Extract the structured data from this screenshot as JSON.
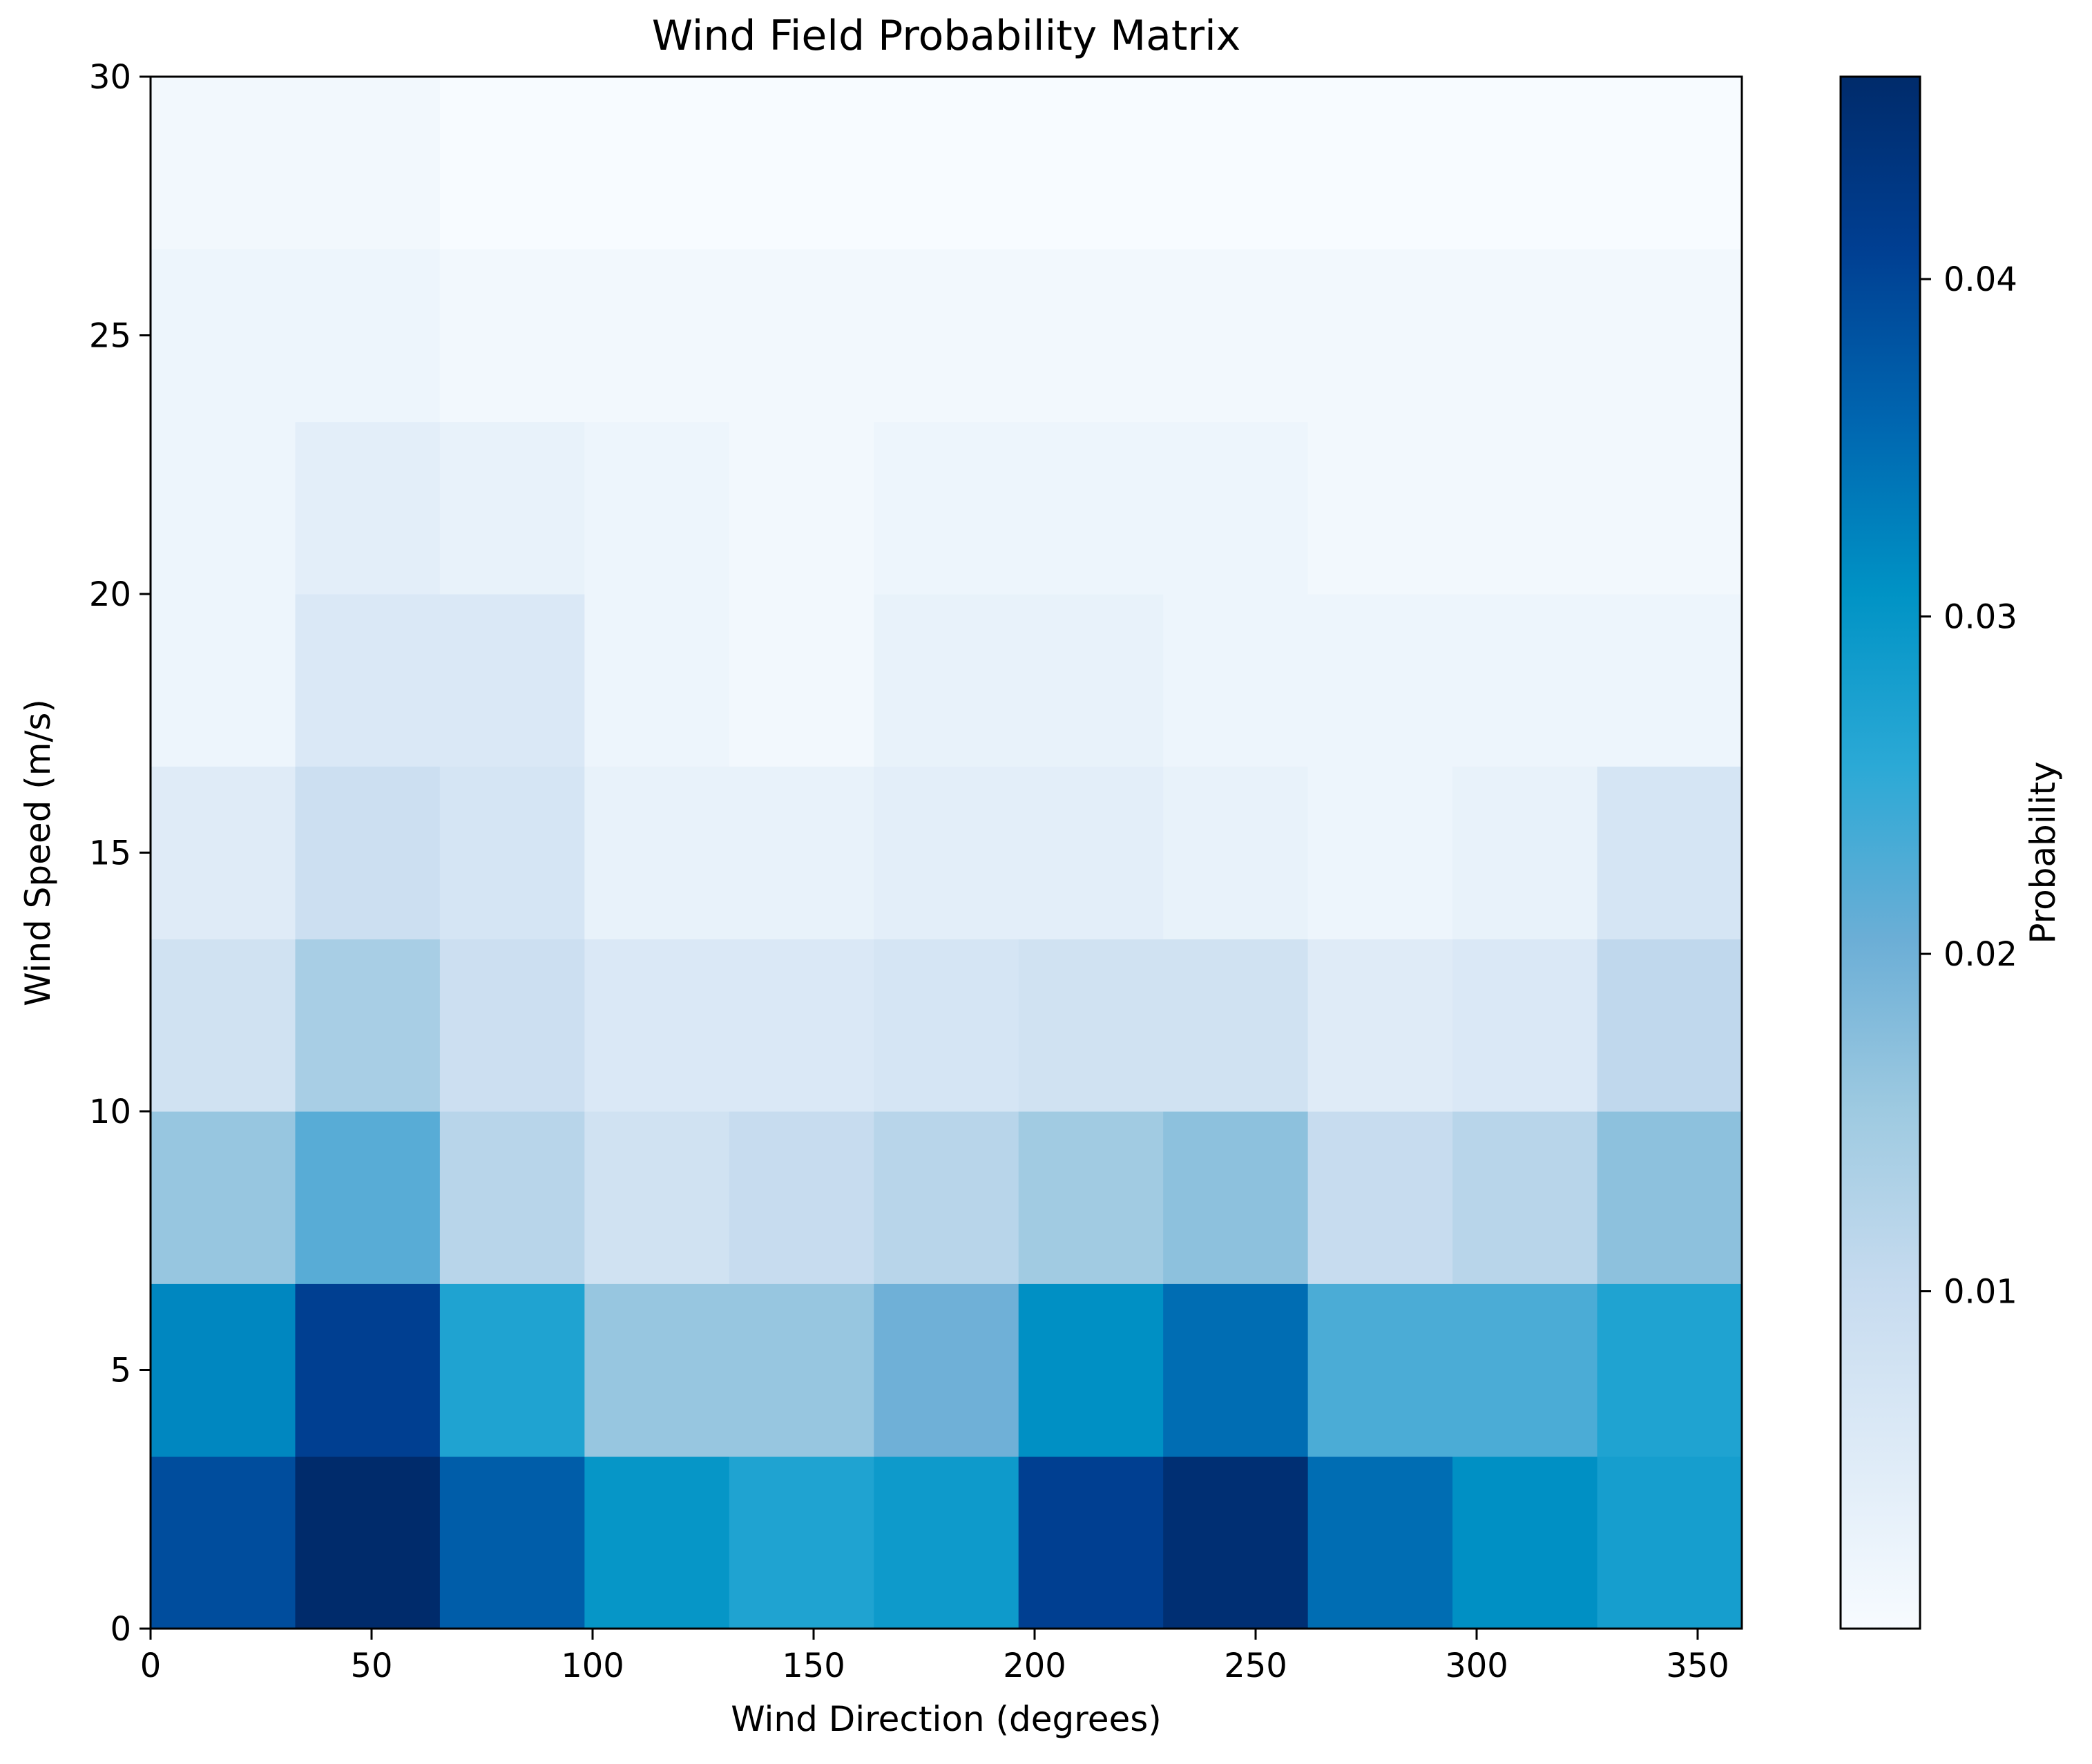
{
  "chart_data": {
    "type": "heatmap",
    "title": "Wind Field Probability Matrix",
    "xlabel": "Wind Direction (degrees)",
    "ylabel": "Wind Speed (m/s)",
    "colorbar_label": "Probability",
    "colormap": "Blues",
    "colormap_stops": [
      "#f7fbff",
      "#deebf7",
      "#c6dbef",
      "#9ecae1",
      "#6baed6",
      "#2ba9d6",
      "#0093c5",
      "#0066b0",
      "#003f92",
      "#002b6b"
    ],
    "xlim": [
      0,
      360
    ],
    "ylim": [
      0,
      30
    ],
    "clim": [
      0.0,
      0.046
    ],
    "x_ticks": [
      0,
      50,
      100,
      150,
      200,
      250,
      300,
      350
    ],
    "y_ticks": [
      0,
      5,
      10,
      15,
      20,
      25,
      30
    ],
    "colorbar_ticks": [
      0.01,
      0.02,
      0.03,
      0.04
    ],
    "x_tick_labels": [
      "0",
      "50",
      "100",
      "150",
      "200",
      "250",
      "300",
      "350"
    ],
    "y_tick_labels": [
      "0",
      "5",
      "10",
      "15",
      "20",
      "25",
      "30"
    ],
    "colorbar_tick_labels": [
      "0.01",
      "0.02",
      "0.03",
      "0.04"
    ],
    "x_edges": [
      0,
      32.73,
      65.45,
      98.18,
      130.91,
      163.64,
      196.36,
      229.09,
      261.82,
      294.55,
      327.27,
      360
    ],
    "y_edges": [
      0,
      3.33,
      6.67,
      10,
      13.33,
      16.67,
      20,
      23.33,
      26.67,
      30
    ],
    "values": [
      [
        0.039,
        0.046,
        0.037,
        0.03,
        0.027,
        0.029,
        0.041,
        0.045,
        0.035,
        0.031,
        0.028
      ],
      [
        0.032,
        0.041,
        0.027,
        0.016,
        0.016,
        0.02,
        0.031,
        0.035,
        0.023,
        0.023,
        0.027
      ],
      [
        0.016,
        0.022,
        0.012,
        0.008,
        0.01,
        0.012,
        0.015,
        0.017,
        0.01,
        0.012,
        0.017
      ],
      [
        0.008,
        0.014,
        0.009,
        0.006,
        0.006,
        0.007,
        0.008,
        0.008,
        0.005,
        0.006,
        0.011
      ],
      [
        0.005,
        0.009,
        0.007,
        0.003,
        0.003,
        0.004,
        0.004,
        0.003,
        0.002,
        0.003,
        0.007
      ],
      [
        0.002,
        0.006,
        0.006,
        0.002,
        0.001,
        0.003,
        0.003,
        0.002,
        0.002,
        0.002,
        0.002
      ],
      [
        0.002,
        0.004,
        0.003,
        0.002,
        0.001,
        0.002,
        0.002,
        0.002,
        0.001,
        0.001,
        0.001
      ],
      [
        0.002,
        0.002,
        0.001,
        0.001,
        0.001,
        0.001,
        0.001,
        0.001,
        0.001,
        0.001,
        0.001
      ],
      [
        0.001,
        0.001,
        0.0,
        0.0,
        0.0,
        0.0,
        0.0,
        0.0,
        0.0,
        0.0,
        0.0
      ]
    ],
    "grid": false
  }
}
